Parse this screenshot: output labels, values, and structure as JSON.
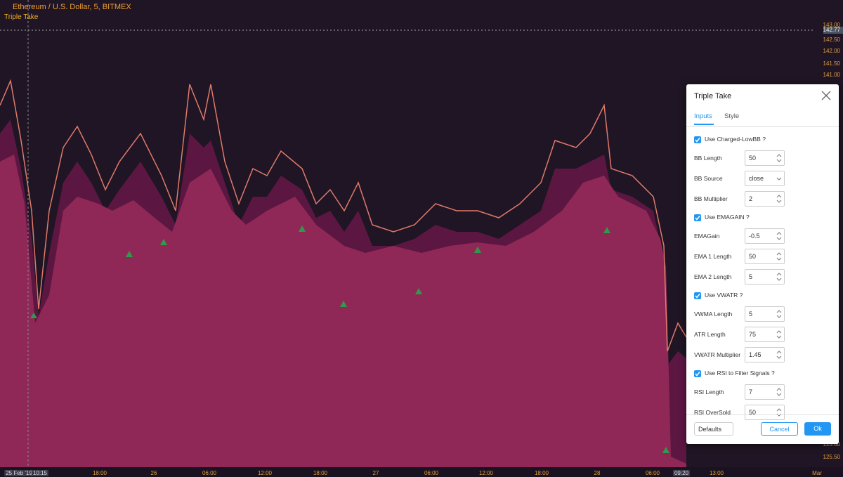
{
  "header": {
    "symbol": "Ethereum / U.S. Dollar, 5, BITMEX",
    "indicator": "Triple Take"
  },
  "price_axis": {
    "labels": [
      "143.00",
      "142.50",
      "142.00",
      "141.50",
      "141.00",
      "126.00",
      "125.50"
    ],
    "current": "142.77"
  },
  "time_axis": {
    "labels": [
      "25 Feb '19",
      "10:15",
      "18:00",
      "26",
      "06:00",
      "12:00",
      "18:00",
      "27",
      "06:00",
      "12:00",
      "18:00",
      "28",
      "06:00",
      "09:20",
      "13:00",
      "Mar"
    ]
  },
  "dialog": {
    "title": "Triple Take",
    "tabs": [
      "Inputs",
      "Style"
    ],
    "rows": [
      {
        "type": "checkbox",
        "label": "Use Charged-LowBB ?",
        "checked": true
      },
      {
        "type": "number",
        "label": "BB Length",
        "value": "50"
      },
      {
        "type": "select",
        "label": "BB Source",
        "value": "close"
      },
      {
        "type": "number",
        "label": "BB Multiplier",
        "value": "2"
      },
      {
        "type": "checkbox",
        "label": "Use EMAGAIN ?",
        "checked": true
      },
      {
        "type": "number",
        "label": "EMAGain",
        "value": "-0.5"
      },
      {
        "type": "number",
        "label": "EMA 1 Length",
        "value": "50"
      },
      {
        "type": "number",
        "label": "EMA 2 Length",
        "value": "5"
      },
      {
        "type": "checkbox",
        "label": "Use VWATR ?",
        "checked": true
      },
      {
        "type": "number",
        "label": "VWMA Length",
        "value": "5"
      },
      {
        "type": "number",
        "label": "ATR Length",
        "value": "75"
      },
      {
        "type": "number",
        "label": "VWATR Multiplier",
        "value": "1.45"
      },
      {
        "type": "checkbox",
        "label": "Use RSI to Filter Signals ?",
        "checked": true
      },
      {
        "type": "number",
        "label": "RSI Length",
        "value": "7"
      },
      {
        "type": "number",
        "label": "RSI OverSold",
        "value": "50"
      }
    ],
    "footer": {
      "defaults": "Defaults",
      "cancel": "Cancel",
      "ok": "Ok"
    }
  }
}
